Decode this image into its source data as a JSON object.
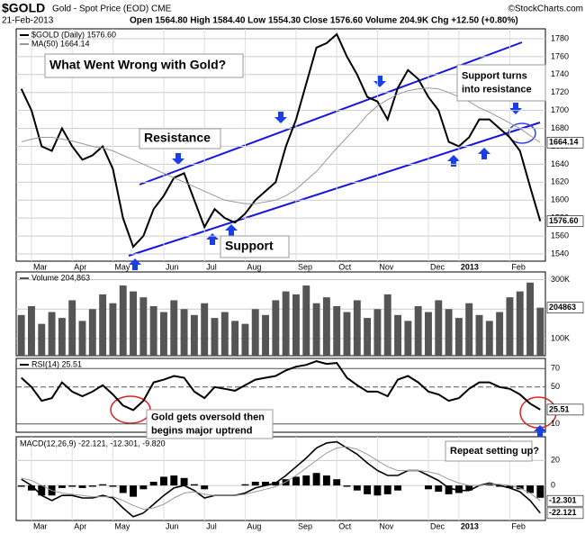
{
  "header": {
    "symbol": "$GOLD",
    "name": "Gold - Spot Price (EOD) CME",
    "source": "©StockCharts.com",
    "date": "21-Feb-2013",
    "quote": "Open 1564.80 High 1584.40 Low 1554.30 Close 1576.60 Volume 204.9K Chg +12.50 (+0.80%)"
  },
  "chart_data": [
    {
      "type": "line",
      "categories": [
        null,
        "Mar",
        null,
        null,
        null,
        "Apr",
        null,
        null,
        null,
        "May",
        null,
        null,
        null,
        null,
        "Jun",
        null,
        null,
        null,
        "Jul",
        null,
        null,
        null,
        "Aug",
        null,
        null,
        null,
        null,
        "Sep",
        null,
        null,
        null,
        "Oct",
        null,
        null,
        null,
        "Nov",
        null,
        null,
        null,
        null,
        "Dec",
        null,
        null,
        "2013",
        null,
        null,
        null,
        null,
        "Feb",
        null,
        null,
        null
      ],
      "ylim": [
        1532,
        1791
      ],
      "yticks": [
        1540,
        1560,
        1580,
        1600,
        1620,
        1640,
        1660,
        1680,
        1700,
        1720,
        1740,
        1760,
        1780
      ],
      "grid": true,
      "series": [
        {
          "name": "$GOLD (Daily) 1576.60",
          "color": "#000000",
          "last_label": "1576.60",
          "values": [
            1724,
            1700,
            1660,
            1655,
            1680,
            1660,
            1645,
            1650,
            1660,
            1635,
            1580,
            1548,
            1560,
            1590,
            1605,
            1625,
            1630,
            1600,
            1570,
            1590,
            1580,
            1575,
            1585,
            1600,
            1610,
            1620,
            1660,
            1690,
            1730,
            1770,
            1775,
            1785,
            1760,
            1740,
            1715,
            1710,
            1690,
            1725,
            1745,
            1735,
            1715,
            1700,
            1665,
            1660,
            1670,
            1690,
            1690,
            1680,
            1670,
            1655,
            1615,
            1576.6
          ]
        },
        {
          "name": "MA(50) 1664.14",
          "color": "#999999",
          "last_label": "1664.14",
          "values": [
            1665,
            1668,
            1670,
            1670,
            1668,
            1666,
            1663,
            1660,
            1658,
            1655,
            1650,
            1645,
            1640,
            1635,
            1630,
            1625,
            1620,
            1615,
            1610,
            1605,
            1600,
            1598,
            1596,
            1596,
            1598,
            1600,
            1605,
            1612,
            1622,
            1632,
            1645,
            1658,
            1670,
            1682,
            1695,
            1705,
            1712,
            1718,
            1722,
            1724,
            1725,
            1724,
            1720,
            1715,
            1710,
            1703,
            1698,
            1692,
            1686,
            1680,
            1672,
            1664.14
          ]
        }
      ],
      "annotations": [
        [
          "What Went Wrong with Gold?"
        ],
        [
          "Resistance"
        ],
        [
          "Support"
        ],
        [
          "Support turns",
          "into resistance"
        ]
      ]
    },
    {
      "type": "bar",
      "ylim": [
        42000,
        326000
      ],
      "yticks": [
        {
          "value": 100000,
          "label": "100K"
        },
        {
          "value": 200000,
          "label": "200K"
        },
        {
          "value": 300000,
          "label": "300K"
        }
      ],
      "series": [
        {
          "name": "Volume 204,863",
          "color": "#555555",
          "last_label": "204863",
          "values": [
            180000,
            210000,
            150000,
            190000,
            170000,
            230000,
            160000,
            200000,
            250000,
            220000,
            280000,
            260000,
            240000,
            210000,
            190000,
            230000,
            200000,
            180000,
            220000,
            170000,
            190000,
            160000,
            150000,
            200000,
            180000,
            230000,
            260000,
            250000,
            280000,
            220000,
            240000,
            210000,
            190000,
            230000,
            170000,
            200000,
            250000,
            180000,
            160000,
            210000,
            190000,
            230000,
            200000,
            170000,
            220000,
            180000,
            160000,
            190000,
            240000,
            260000,
            290000,
            204863
          ]
        }
      ]
    },
    {
      "type": "line",
      "ylim": [
        1,
        81
      ],
      "yticks": [
        10,
        50,
        70
      ],
      "series": [
        {
          "name": "RSI(14) 25.51",
          "color": "#000000",
          "last_label": "25.51",
          "values": [
            60,
            50,
            35,
            38,
            55,
            45,
            40,
            45,
            52,
            42,
            30,
            25,
            35,
            55,
            58,
            62,
            60,
            45,
            38,
            50,
            48,
            46,
            52,
            58,
            60,
            62,
            68,
            72,
            74,
            78,
            75,
            76,
            60,
            52,
            45,
            45,
            40,
            58,
            62,
            55,
            45,
            42,
            35,
            38,
            48,
            55,
            55,
            50,
            48,
            42,
            32,
            25.51
          ]
        }
      ],
      "annotations": [
        [
          "Gold gets oversold then",
          "begins major uptrend"
        ]
      ]
    },
    {
      "type": "macd",
      "categories": [
        null,
        "Mar",
        null,
        null,
        null,
        "Apr",
        null,
        null,
        null,
        "May",
        null,
        null,
        null,
        null,
        "Jun",
        null,
        null,
        null,
        "Jul",
        null,
        null,
        null,
        "Aug",
        null,
        null,
        null,
        null,
        "Sep",
        null,
        null,
        null,
        "Oct",
        null,
        null,
        null,
        "Nov",
        null,
        null,
        null,
        null,
        "Dec",
        null,
        null,
        "2013",
        null,
        null,
        null,
        null,
        "Feb",
        null,
        null,
        null
      ],
      "title": "MACD(12,26,9) -22.121, -12.301, -9.820",
      "ylim": [
        -28,
        39
      ],
      "yticks": [
        0,
        20
      ],
      "series": [
        {
          "color": "#000000",
          "last_label": "-22.121",
          "values": [
            5,
            0,
            -8,
            -12,
            -8,
            -8,
            -10,
            -10,
            -8,
            -10,
            -18,
            -25,
            -22,
            -15,
            -8,
            -2,
            0,
            -4,
            -10,
            -8,
            -8,
            -8,
            -6,
            -2,
            0,
            2,
            8,
            15,
            22,
            30,
            34,
            35,
            30,
            25,
            18,
            12,
            8,
            8,
            12,
            12,
            8,
            4,
            -2,
            -4,
            -4,
            0,
            2,
            0,
            -2,
            -5,
            -12,
            -22.121
          ]
        },
        {
          "color": "#999999",
          "last_label": "-12.301",
          "values": [
            6,
            4,
            0,
            -4,
            -6,
            -7,
            -8,
            -9,
            -9,
            -9,
            -12,
            -16,
            -19,
            -18,
            -15,
            -10,
            -6,
            -5,
            -7,
            -8,
            -8,
            -8,
            -7,
            -5,
            -3,
            -1,
            3,
            8,
            14,
            20,
            26,
            30,
            31,
            29,
            25,
            20,
            15,
            12,
            12,
            12,
            11,
            9,
            5,
            2,
            0,
            0,
            1,
            1,
            0,
            -2,
            -6,
            -12.301
          ]
        },
        {
          "color": "#000000",
          "kind": "bar",
          "values": [
            -1,
            -4,
            -8,
            -8,
            -2,
            -1,
            -2,
            -1,
            1,
            -1,
            -6,
            -9,
            -3,
            3,
            7,
            8,
            6,
            1,
            -3,
            0,
            0,
            0,
            1,
            3,
            3,
            3,
            5,
            7,
            8,
            10,
            8,
            5,
            -1,
            -4,
            -7,
            -8,
            -7,
            -4,
            0,
            0,
            -3,
            -5,
            -7,
            -6,
            -4,
            0,
            1,
            -1,
            -2,
            -3,
            -6,
            -9.82
          ]
        }
      ],
      "annotations": [
        [
          "Repeat setting up?"
        ]
      ]
    }
  ]
}
